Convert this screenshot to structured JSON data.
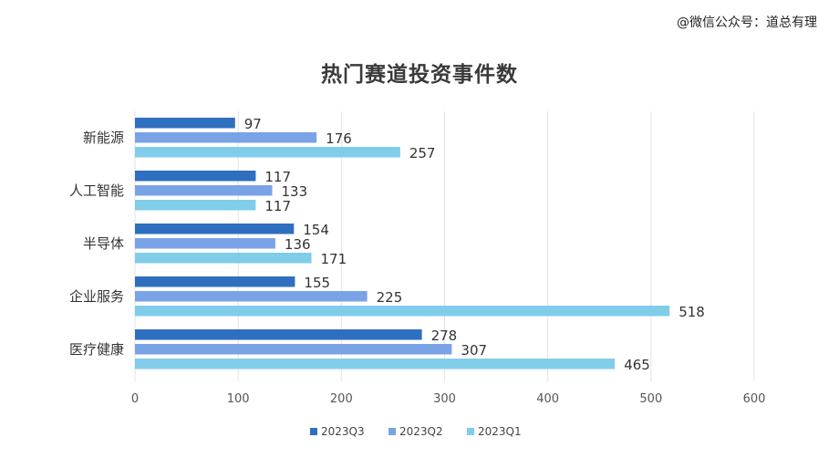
{
  "watermark": "@微信公众号：道总有理",
  "chart_data": {
    "type": "bar",
    "orientation": "horizontal",
    "title": "热门赛道投资事件数",
    "categories": [
      "新能源",
      "人工智能",
      "半导体",
      "企业服务",
      "医疗健康"
    ],
    "series": [
      {
        "name": "2023Q3",
        "values": [
          97,
          117,
          154,
          155,
          278
        ],
        "color": "#2e6fc0"
      },
      {
        "name": "2023Q2",
        "values": [
          176,
          133,
          136,
          225,
          307
        ],
        "color": "#79a3e6"
      },
      {
        "name": "2023Q1",
        "values": [
          257,
          117,
          171,
          518,
          465
        ],
        "color": "#80cde9"
      }
    ],
    "xlim": [
      0,
      600
    ],
    "xticks": [
      0,
      100,
      200,
      300,
      400,
      500,
      600
    ],
    "grid": true,
    "legend_position": "bottom",
    "xlabel": "",
    "ylabel": ""
  }
}
